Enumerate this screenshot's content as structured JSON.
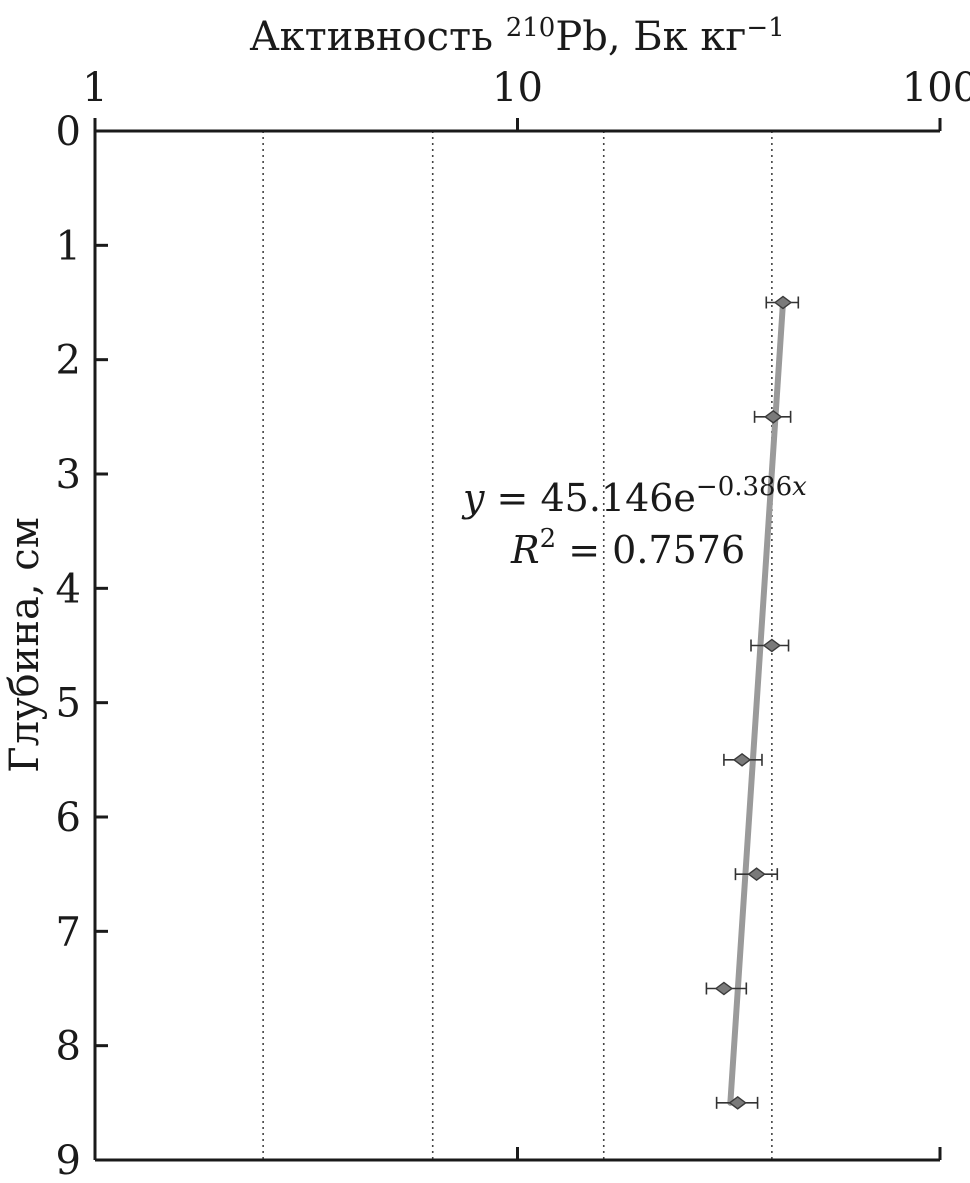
{
  "chart_data": {
    "type": "scatter",
    "title": "",
    "xlabel": {
      "text": "Активность ",
      "isotope": "210",
      "element": "Pb",
      "units": ", Бк кг",
      "exponent": "−1"
    },
    "ylabel": "Глубина, см",
    "x_scale": "log",
    "xlim": [
      1,
      100
    ],
    "ylim": [
      0,
      9
    ],
    "y_inverted": true,
    "x_axis_position": "top",
    "x_ticks": [
      {
        "value": 1,
        "label": "1"
      },
      {
        "value": 10,
        "label": "10"
      },
      {
        "value": 100,
        "label": "100"
      }
    ],
    "y_ticks": [
      {
        "value": 0,
        "label": "0"
      },
      {
        "value": 1,
        "label": "1"
      },
      {
        "value": 2,
        "label": "2"
      },
      {
        "value": 3,
        "label": "3"
      },
      {
        "value": 4,
        "label": "4"
      },
      {
        "value": 5,
        "label": "5"
      },
      {
        "value": 6,
        "label": "6"
      },
      {
        "value": 7,
        "label": "7"
      },
      {
        "value": 8,
        "label": "8"
      },
      {
        "value": 9,
        "label": "9"
      }
    ],
    "vertical_gridlines": [
      2.5,
      6.3,
      16,
      40
    ],
    "points": [
      {
        "depth": 1.5,
        "activity": 42.5,
        "err_low": 38.8,
        "err_high": 46.2
      },
      {
        "depth": 2.5,
        "activity": 40.3,
        "err_low": 36.4,
        "err_high": 44.3
      },
      {
        "depth": 4.5,
        "activity": 40.0,
        "err_low": 35.7,
        "err_high": 43.8
      },
      {
        "depth": 5.5,
        "activity": 34.0,
        "err_low": 30.8,
        "err_high": 37.9
      },
      {
        "depth": 6.5,
        "activity": 36.8,
        "err_low": 32.8,
        "err_high": 41.2
      },
      {
        "depth": 7.5,
        "activity": 30.8,
        "err_low": 28.0,
        "err_high": 34.8
      },
      {
        "depth": 8.5,
        "activity": 33.2,
        "err_low": 29.6,
        "err_high": 37.0
      }
    ],
    "trendline": {
      "a": 45.146,
      "b": 0.386,
      "depth_from": 1.5,
      "depth_to": 8.5
    },
    "annotation": {
      "equation": {
        "var": "y",
        "rhs": " = 45.146e",
        "exponent_num": "−0.386",
        "exponent_var": "x"
      },
      "r2": {
        "var": "R",
        "power": "2",
        "rhs": " = 0.7576"
      }
    },
    "grid": "dotted vertical",
    "colors": {
      "marker": "#7a7a7a",
      "marker_edge": "#3a3a3a",
      "trendline": "#9a9a9a",
      "axis": "#1a1a1a",
      "grid": "#444444"
    }
  }
}
